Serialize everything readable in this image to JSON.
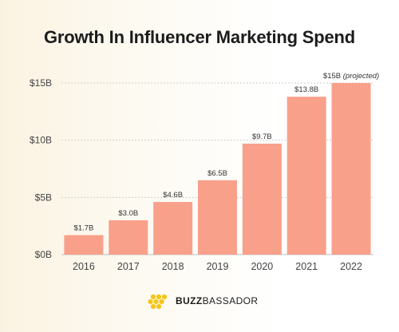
{
  "chart_data": {
    "type": "bar",
    "title": "Growth In Influencer Marketing Spend",
    "categories": [
      "2016",
      "2017",
      "2018",
      "2019",
      "2020",
      "2021",
      "2022"
    ],
    "values": [
      1.7,
      3.0,
      4.6,
      6.5,
      9.7,
      13.8,
      15
    ],
    "value_labels": [
      "$1.7B",
      "$3.0B",
      "$4.6B",
      "$6.5B",
      "$9.7B",
      "$13.8B",
      "$15B"
    ],
    "annotation": "(projected)",
    "yticks": [
      0,
      5,
      10,
      15
    ],
    "ytick_labels": [
      "$0B",
      "$5B",
      "$10B",
      "$15B"
    ],
    "ylim": [
      0,
      15
    ],
    "xlabel": "",
    "ylabel": "",
    "grid": true,
    "bar_color": "#f9a08a",
    "grid_color": "#cfcfcf"
  },
  "brand": {
    "part1": "BUZZ",
    "part2": "BASSADOR",
    "logo_color": "#f5c518"
  }
}
